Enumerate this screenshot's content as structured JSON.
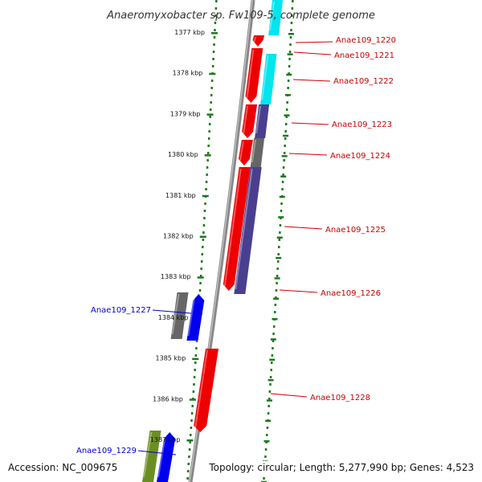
{
  "title": "Anaeromyxobacter sp. Fw109-5, complete genome",
  "footer": {
    "accession": "Accession: NC_009675",
    "topology": "Topology: circular; Length: 5,277,990 bp; Genes: 4,523"
  },
  "colors": {
    "forward_label": "#cc0000",
    "reverse_label": "#0000cc",
    "ruler": "#1a7a1a",
    "backbone": "#888888",
    "red_gene": "#ee0000",
    "blue_gene": "#0000ee",
    "cyan_gene": "#00e5ee",
    "purple_gene": "#4a3f8f",
    "gray_gene": "#666666",
    "olive_gene": "#6b8e23"
  },
  "ticks": [
    {
      "kbp": 1377,
      "label": "1377 kbp"
    },
    {
      "kbp": 1378,
      "label": "1378 kbp"
    },
    {
      "kbp": 1379,
      "label": "1379 kbp"
    },
    {
      "kbp": 1380,
      "label": "1380 kbp"
    },
    {
      "kbp": 1381,
      "label": "1381 kbp"
    },
    {
      "kbp": 1382,
      "label": "1382 kbp"
    },
    {
      "kbp": 1383,
      "label": "1383 kbp"
    },
    {
      "kbp": 1384,
      "label": "1384 kbp"
    },
    {
      "kbp": 1385,
      "label": "1385 kbp"
    },
    {
      "kbp": 1386,
      "label": "1386 kbp"
    },
    {
      "kbp": 1387,
      "label": "1387 kbp"
    }
  ],
  "gene_labels": [
    {
      "name": "Anae109_1220",
      "strand": "forward"
    },
    {
      "name": "Anae109_1221",
      "strand": "forward"
    },
    {
      "name": "Anae109_1222",
      "strand": "forward"
    },
    {
      "name": "Anae109_1223",
      "strand": "forward"
    },
    {
      "name": "Anae109_1224",
      "strand": "forward"
    },
    {
      "name": "Anae109_1225",
      "strand": "forward"
    },
    {
      "name": "Anae109_1226",
      "strand": "forward"
    },
    {
      "name": "Anae109_1227",
      "strand": "reverse"
    },
    {
      "name": "Anae109_1228",
      "strand": "forward"
    },
    {
      "name": "Anae109_1229",
      "strand": "reverse"
    }
  ]
}
